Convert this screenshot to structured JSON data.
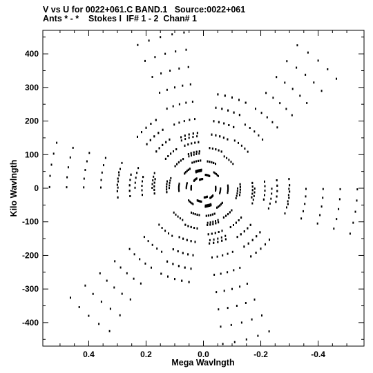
{
  "chart_data": {
    "type": "scatter",
    "title": "V vs U for 0022+061.C BAND.1   Source:0022+061",
    "subtitle": "Ants * - *    Stokes I  IF# 1 - 2  Chan# 1",
    "xlabel": "Mega Wavlngth",
    "ylabel": "Kilo Wavlngth",
    "xlim": [
      0.56,
      -0.56
    ],
    "ylim": [
      -470,
      470
    ],
    "x_ticks": [
      0.4,
      0.2,
      0.0,
      -0.2,
      -0.4
    ],
    "x_tick_labels": [
      "0.4",
      "0.2",
      "0.0",
      "-0.2",
      "-0.4"
    ],
    "y_ticks": [
      400,
      300,
      200,
      100,
      0,
      -100,
      -200,
      -300,
      -400
    ],
    "y_tick_labels": [
      "400",
      "300",
      "200",
      "100",
      "0",
      "-100",
      "-200",
      "-300",
      "-400"
    ],
    "grid": false,
    "pattern": {
      "tracks": [
        {
          "ux": 0.15,
          "vy": 450,
          "n": 9
        },
        {
          "ux": 0.4,
          "vy": -380,
          "n": 9
        },
        {
          "ux": -0.53,
          "vy": -70,
          "n": 9
        },
        {
          "ux": 0.2,
          "vy": 180,
          "n": 7
        },
        {
          "ux": -0.1,
          "vy": 270,
          "n": 7
        },
        {
          "ux": 0.1,
          "vy": -270,
          "n": 7
        },
        {
          "ux": -0.2,
          "vy": -180,
          "n": 7
        },
        {
          "ux": 0.3,
          "vy": 10,
          "n": 7
        },
        {
          "ux": -0.3,
          "vy": -10,
          "n": 7
        },
        {
          "ux": 0.05,
          "vy": 160,
          "n": 6
        },
        {
          "ux": -0.05,
          "vy": -160,
          "n": 6
        }
      ],
      "arc": 0.3
    }
  }
}
